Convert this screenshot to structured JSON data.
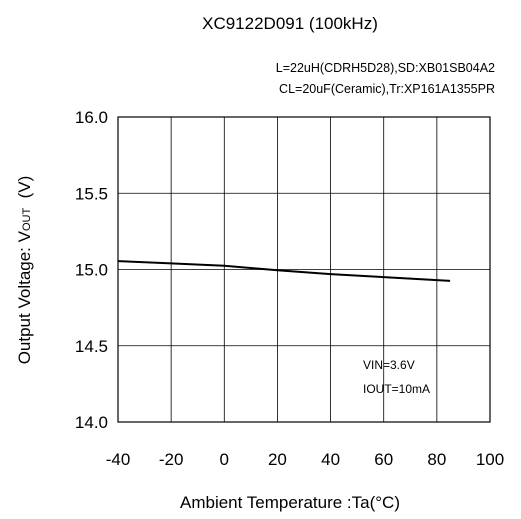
{
  "chart_data": {
    "type": "line",
    "title": "XC9122D091 (100kHz)",
    "conditions": [
      "L=22uH(CDRH5D28),SD:XB01SB04A2",
      "CL=20uF(Ceramic),Tr:XP161A1355PR"
    ],
    "xlabel": "Ambient Temperature :Ta(°C)",
    "ylabel": "Output Voltage: V",
    "ylabel_subscript": "OUT",
    "ylabel_unit": "  (V)",
    "xlim": [
      -40,
      100
    ],
    "ylim": [
      14.0,
      16.0
    ],
    "x_ticks": [
      "-40",
      "-20",
      "0",
      "20",
      "40",
      "60",
      "80",
      "100"
    ],
    "y_ticks": [
      "16.0",
      "15.5",
      "15.0",
      "14.5",
      "14.0"
    ],
    "grid": true,
    "annotations": [
      "VIN=3.6V",
      "IOUT=10mA"
    ],
    "series": [
      {
        "x": [
          -40,
          -20,
          0,
          20,
          40,
          60,
          85
        ],
        "y": [
          15.055,
          15.04,
          15.025,
          14.995,
          14.97,
          14.95,
          14.925
        ]
      }
    ]
  }
}
